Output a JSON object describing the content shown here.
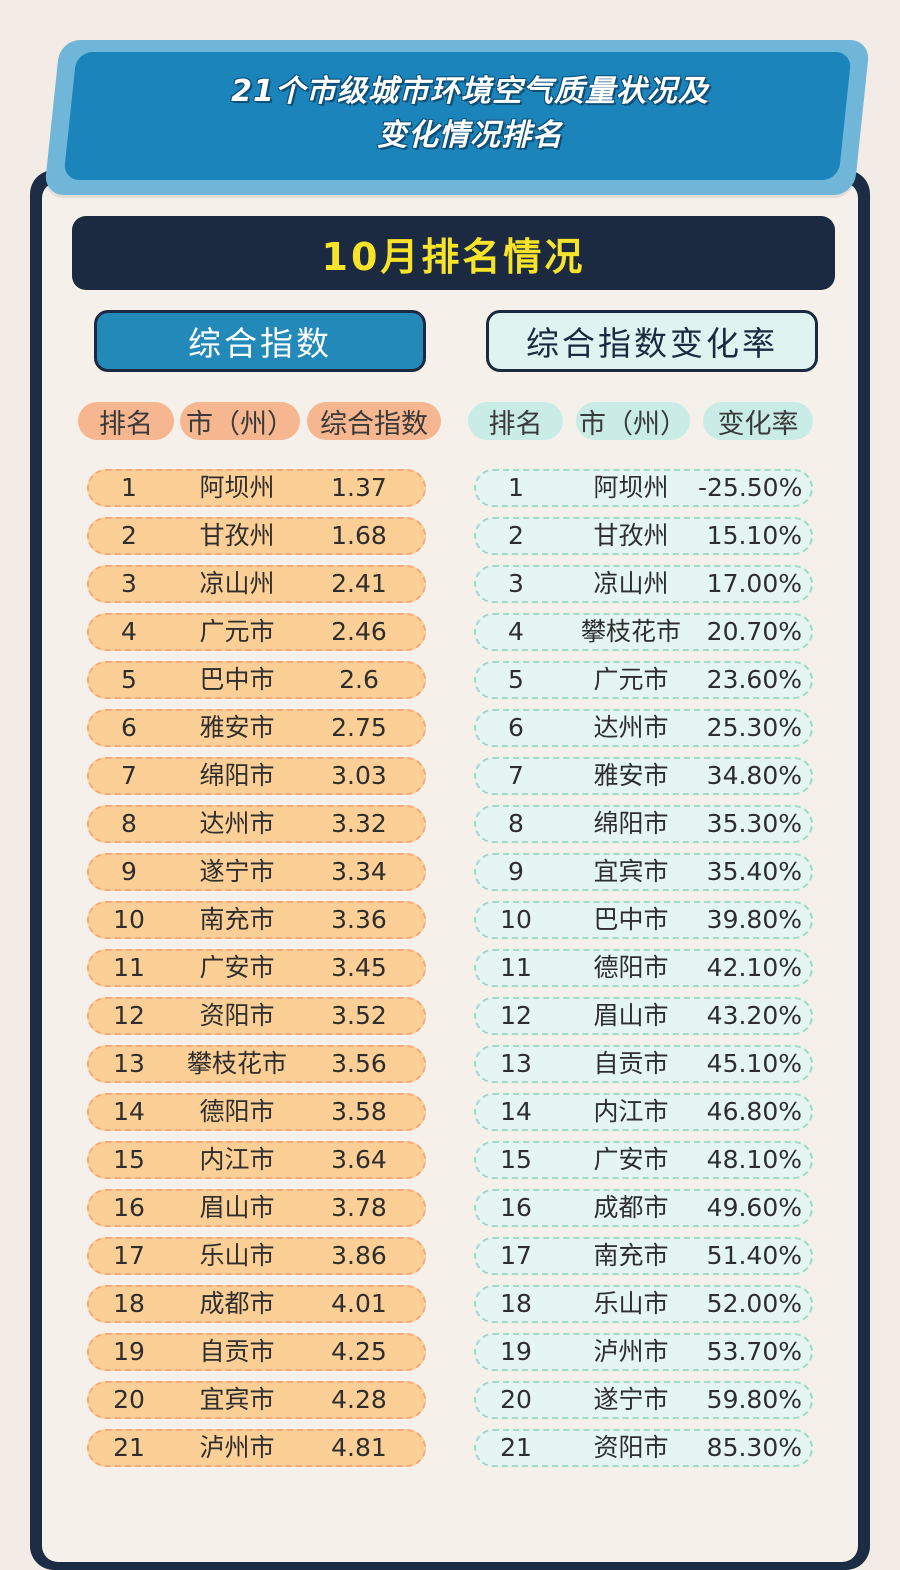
{
  "title_line1": "21个市级城市环境空气质量状况及",
  "title_line2": "变化情况排名",
  "month_title": "10月排名情况",
  "left_section": "综合指数",
  "right_section": "综合指数变化率",
  "left_headers": [
    "排名",
    "市（州）",
    "综合指数"
  ],
  "right_headers": [
    "排名",
    "市（州）",
    "变化率"
  ],
  "left_rows": [
    {
      "rank": "1",
      "city": "阿坝州",
      "value": "1.37"
    },
    {
      "rank": "2",
      "city": "甘孜州",
      "value": "1.68"
    },
    {
      "rank": "3",
      "city": "凉山州",
      "value": "2.41"
    },
    {
      "rank": "4",
      "city": "广元市",
      "value": "2.46"
    },
    {
      "rank": "5",
      "city": "巴中市",
      "value": "2.6"
    },
    {
      "rank": "6",
      "city": "雅安市",
      "value": "2.75"
    },
    {
      "rank": "7",
      "city": "绵阳市",
      "value": "3.03"
    },
    {
      "rank": "8",
      "city": "达州市",
      "value": "3.32"
    },
    {
      "rank": "9",
      "city": "遂宁市",
      "value": "3.34"
    },
    {
      "rank": "10",
      "city": "南充市",
      "value": "3.36"
    },
    {
      "rank": "11",
      "city": "广安市",
      "value": "3.45"
    },
    {
      "rank": "12",
      "city": "资阳市",
      "value": "3.52"
    },
    {
      "rank": "13",
      "city": "攀枝花市",
      "value": "3.56"
    },
    {
      "rank": "14",
      "city": "德阳市",
      "value": "3.58"
    },
    {
      "rank": "15",
      "city": "内江市",
      "value": "3.64"
    },
    {
      "rank": "16",
      "city": "眉山市",
      "value": "3.78"
    },
    {
      "rank": "17",
      "city": "乐山市",
      "value": "3.86"
    },
    {
      "rank": "18",
      "city": "成都市",
      "value": "4.01"
    },
    {
      "rank": "19",
      "city": "自贡市",
      "value": "4.25"
    },
    {
      "rank": "20",
      "city": "宜宾市",
      "value": "4.28"
    },
    {
      "rank": "21",
      "city": "泸州市",
      "value": "4.81"
    }
  ],
  "right_rows": [
    {
      "rank": "1",
      "city": "阿坝州",
      "value": "-25.50%"
    },
    {
      "rank": "2",
      "city": "甘孜州",
      "value": "15.10%"
    },
    {
      "rank": "3",
      "city": "凉山州",
      "value": "17.00%"
    },
    {
      "rank": "4",
      "city": "攀枝花市",
      "value": "20.70%"
    },
    {
      "rank": "5",
      "city": "广元市",
      "value": "23.60%"
    },
    {
      "rank": "6",
      "city": "达州市",
      "value": "25.30%"
    },
    {
      "rank": "7",
      "city": "雅安市",
      "value": "34.80%"
    },
    {
      "rank": "8",
      "city": "绵阳市",
      "value": "35.30%"
    },
    {
      "rank": "9",
      "city": "宜宾市",
      "value": "35.40%"
    },
    {
      "rank": "10",
      "city": "巴中市",
      "value": "39.80%"
    },
    {
      "rank": "11",
      "city": "德阳市",
      "value": "42.10%"
    },
    {
      "rank": "12",
      "city": "眉山市",
      "value": "43.20%"
    },
    {
      "rank": "13",
      "city": "自贡市",
      "value": "45.10%"
    },
    {
      "rank": "14",
      "city": "内江市",
      "value": "46.80%"
    },
    {
      "rank": "15",
      "city": "广安市",
      "value": "48.10%"
    },
    {
      "rank": "16",
      "city": "成都市",
      "value": "49.60%"
    },
    {
      "rank": "17",
      "city": "南充市",
      "value": "51.40%"
    },
    {
      "rank": "18",
      "city": "乐山市",
      "value": "52.00%"
    },
    {
      "rank": "19",
      "city": "泸州市",
      "value": "53.70%"
    },
    {
      "rank": "20",
      "city": "遂宁市",
      "value": "59.80%"
    },
    {
      "rank": "21",
      "city": "资阳市",
      "value": "85.30%"
    }
  ]
}
